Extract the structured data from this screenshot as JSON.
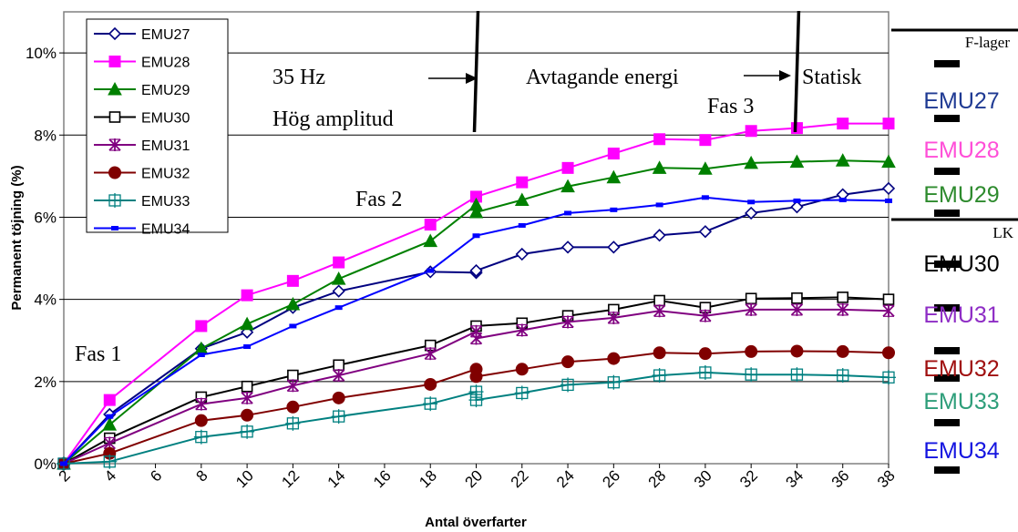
{
  "chart_data": {
    "type": "line",
    "title": "",
    "xlabel": "Antal överfarter",
    "ylabel": "Permanent töjning (%)",
    "x_ticks": [
      "2",
      "4",
      "6",
      "8",
      "10",
      "12",
      "14",
      "16",
      "18",
      "20",
      "22",
      "24",
      "26",
      "28",
      "30",
      "32",
      "34",
      "36",
      "38"
    ],
    "y_ticks": [
      "0%",
      "2%",
      "4%",
      "6%",
      "8%",
      "10%"
    ],
    "xlim": [
      2,
      38
    ],
    "ylim": [
      0,
      11
    ],
    "grid": "horizontal",
    "legend_position": "top-left",
    "series": [
      {
        "name": "EMU27",
        "color": "#000080",
        "marker": "diamond-open",
        "points": [
          [
            2,
            0
          ],
          [
            4,
            1.2
          ],
          [
            8,
            2.8
          ],
          [
            10,
            3.2
          ],
          [
            12,
            3.8
          ],
          [
            14,
            4.2
          ],
          [
            18,
            4.67
          ],
          [
            20,
            4.65
          ],
          [
            20,
            4.7
          ],
          [
            22,
            5.1
          ],
          [
            24,
            5.27
          ],
          [
            26,
            5.27
          ],
          [
            28,
            5.56
          ],
          [
            30,
            5.65
          ],
          [
            32,
            6.1
          ],
          [
            34,
            6.25
          ],
          [
            36,
            6.55
          ],
          [
            38,
            6.7
          ]
        ]
      },
      {
        "name": "EMU28",
        "color": "#FF00FF",
        "marker": "square-filled",
        "points": [
          [
            2,
            0
          ],
          [
            4,
            1.55
          ],
          [
            8,
            3.35
          ],
          [
            10,
            4.1
          ],
          [
            12,
            4.45
          ],
          [
            14,
            4.9
          ],
          [
            18,
            5.82
          ],
          [
            20,
            6.5
          ],
          [
            22,
            6.85
          ],
          [
            24,
            7.2
          ],
          [
            26,
            7.55
          ],
          [
            28,
            7.9
          ],
          [
            30,
            7.88
          ],
          [
            32,
            8.1
          ],
          [
            34,
            8.17
          ],
          [
            36,
            8.28
          ],
          [
            38,
            8.28
          ]
        ]
      },
      {
        "name": "EMU29",
        "color": "#008000",
        "marker": "triangle-filled",
        "points": [
          [
            2,
            0
          ],
          [
            4,
            0.95
          ],
          [
            8,
            2.8
          ],
          [
            10,
            3.4
          ],
          [
            12,
            3.88
          ],
          [
            14,
            4.5
          ],
          [
            18,
            5.42
          ],
          [
            20,
            6.3
          ],
          [
            20,
            6.12
          ],
          [
            22,
            6.42
          ],
          [
            24,
            6.75
          ],
          [
            26,
            6.97
          ],
          [
            28,
            7.2
          ],
          [
            30,
            7.18
          ],
          [
            32,
            7.32
          ],
          [
            34,
            7.35
          ],
          [
            36,
            7.38
          ],
          [
            38,
            7.35
          ]
        ]
      },
      {
        "name": "EMU30",
        "color": "#000000",
        "marker": "square-open",
        "points": [
          [
            2,
            0
          ],
          [
            4,
            0.62
          ],
          [
            8,
            1.62
          ],
          [
            10,
            1.88
          ],
          [
            12,
            2.15
          ],
          [
            14,
            2.4
          ],
          [
            18,
            2.88
          ],
          [
            20,
            3.35
          ],
          [
            22,
            3.42
          ],
          [
            24,
            3.6
          ],
          [
            26,
            3.75
          ],
          [
            28,
            3.97
          ],
          [
            30,
            3.8
          ],
          [
            32,
            4.02
          ],
          [
            34,
            4.03
          ],
          [
            36,
            4.05
          ],
          [
            38,
            4.0
          ]
        ]
      },
      {
        "name": "EMU31",
        "color": "#800080",
        "marker": "star",
        "points": [
          [
            2,
            0
          ],
          [
            4,
            0.5
          ],
          [
            8,
            1.45
          ],
          [
            10,
            1.6
          ],
          [
            12,
            1.9
          ],
          [
            14,
            2.15
          ],
          [
            18,
            2.68
          ],
          [
            20,
            3.22
          ],
          [
            20,
            3.05
          ],
          [
            22,
            3.25
          ],
          [
            24,
            3.45
          ],
          [
            26,
            3.55
          ],
          [
            28,
            3.72
          ],
          [
            30,
            3.6
          ],
          [
            32,
            3.75
          ],
          [
            34,
            3.75
          ],
          [
            36,
            3.75
          ],
          [
            38,
            3.72
          ]
        ]
      },
      {
        "name": "EMU32",
        "color": "#800000",
        "marker": "circle-filled",
        "points": [
          [
            2,
            0
          ],
          [
            4,
            0.25
          ],
          [
            8,
            1.05
          ],
          [
            10,
            1.18
          ],
          [
            12,
            1.38
          ],
          [
            14,
            1.6
          ],
          [
            18,
            1.93
          ],
          [
            20,
            2.3
          ],
          [
            20,
            2.12
          ],
          [
            22,
            2.3
          ],
          [
            24,
            2.48
          ],
          [
            26,
            2.56
          ],
          [
            28,
            2.7
          ],
          [
            30,
            2.68
          ],
          [
            32,
            2.73
          ],
          [
            34,
            2.74
          ],
          [
            36,
            2.73
          ],
          [
            38,
            2.7
          ]
        ]
      },
      {
        "name": "EMU33",
        "color": "#008080",
        "marker": "plus-square",
        "points": [
          [
            2,
            0
          ],
          [
            4,
            0.05
          ],
          [
            8,
            0.65
          ],
          [
            10,
            0.78
          ],
          [
            12,
            0.98
          ],
          [
            14,
            1.15
          ],
          [
            18,
            1.46
          ],
          [
            20,
            1.75
          ],
          [
            20,
            1.55
          ],
          [
            22,
            1.72
          ],
          [
            24,
            1.92
          ],
          [
            26,
            1.98
          ],
          [
            28,
            2.15
          ],
          [
            30,
            2.22
          ],
          [
            32,
            2.17
          ],
          [
            34,
            2.17
          ],
          [
            36,
            2.15
          ],
          [
            38,
            2.1
          ]
        ]
      },
      {
        "name": "EMU34",
        "color": "#0000FF",
        "marker": "dash",
        "points": [
          [
            2,
            0
          ],
          [
            4,
            1.15
          ],
          [
            8,
            2.65
          ],
          [
            10,
            2.85
          ],
          [
            12,
            3.35
          ],
          [
            14,
            3.8
          ],
          [
            18,
            4.7
          ],
          [
            20,
            5.55
          ],
          [
            22,
            5.8
          ],
          [
            24,
            6.1
          ],
          [
            26,
            6.18
          ],
          [
            28,
            6.3
          ],
          [
            30,
            6.48
          ],
          [
            32,
            6.37
          ],
          [
            34,
            6.4
          ],
          [
            36,
            6.42
          ],
          [
            38,
            6.4
          ]
        ]
      }
    ],
    "annotations": {
      "fas1": "Fas 1",
      "fas2": "Fas 2",
      "fas3": "Fas 3",
      "hz": "35 Hz",
      "amp": "Hög amplitud",
      "avtagande": "Avtagande energi",
      "statisk": "Statisk"
    },
    "phase_lines": [
      20,
      34
    ]
  },
  "side_panel": {
    "f_lager": "F-lager",
    "lk": "LK",
    "labels": [
      {
        "name": "EMU27",
        "color": "#1F3A93"
      },
      {
        "name": "EMU28",
        "color": "#FF4FD8"
      },
      {
        "name": "EMU29",
        "color": "#2E8B2E"
      },
      {
        "name": "EMU30",
        "color": "#000000"
      },
      {
        "name": "EMU31",
        "color": "#8E2DC5"
      },
      {
        "name": "EMU32",
        "color": "#A01010"
      },
      {
        "name": "EMU33",
        "color": "#2E9E7A"
      },
      {
        "name": "EMU34",
        "color": "#1414E0"
      }
    ]
  }
}
